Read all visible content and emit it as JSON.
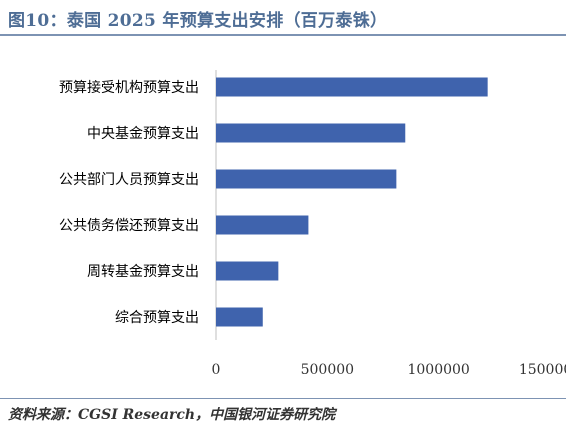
{
  "header": {
    "title": "图10：泰国 2025 年预算支出安排（百万泰铢）"
  },
  "footer": {
    "source": "资料来源：CGSI Research，中国银河证券研究院"
  },
  "chart_data": {
    "type": "bar",
    "orientation": "horizontal",
    "title": "图10：泰国 2025 年预算支出安排（百万泰铢）",
    "categories": [
      "预算接受机构预算支出",
      "中央基金预算支出",
      "公共部门人员预算支出",
      "公共债务偿还预算支出",
      "周转基金预算支出",
      "综合预算支出"
    ],
    "values": [
      1220000,
      850000,
      810000,
      415000,
      280000,
      210000
    ],
    "xlim": [
      0,
      1500000
    ],
    "x_ticks": [
      "0",
      "500000",
      "1000000",
      "1500000"
    ],
    "xlabel": "",
    "ylabel": "",
    "grid": false,
    "legend": "none",
    "bar_color": "#3f63ad"
  }
}
